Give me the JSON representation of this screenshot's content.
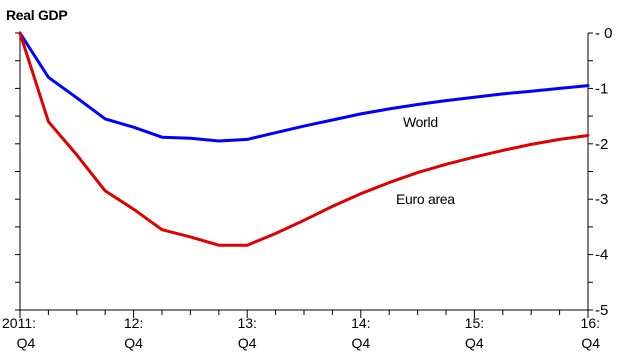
{
  "chart_data": {
    "type": "line",
    "title": "Real GDP",
    "xlabel": "",
    "ylabel": "",
    "x_ticks": [
      {
        "top": "2011:",
        "bottom": "Q4"
      },
      {
        "top": "12:",
        "bottom": "Q4"
      },
      {
        "top": "13:",
        "bottom": "Q4"
      },
      {
        "top": "14:",
        "bottom": "Q4"
      },
      {
        "top": "15:",
        "bottom": "Q4"
      },
      {
        "top": "16:",
        "bottom": "Q4"
      }
    ],
    "y_ticks": [
      "0",
      "-1",
      "-2",
      "-3",
      "-4",
      "-5"
    ],
    "ylim": [
      -5,
      0
    ],
    "xlim": [
      0,
      20
    ],
    "grid": false,
    "series": [
      {
        "name": "World",
        "color": "#0000ff",
        "x": [
          0,
          1,
          2,
          3,
          4,
          5,
          6,
          7,
          8,
          9,
          10,
          11,
          12,
          13,
          14,
          15,
          16,
          17,
          18,
          19,
          20
        ],
        "values": [
          0,
          -0.8,
          -1.17,
          -1.55,
          -1.7,
          -1.88,
          -1.9,
          -1.95,
          -1.92,
          -1.8,
          -1.68,
          -1.57,
          -1.46,
          -1.37,
          -1.29,
          -1.22,
          -1.16,
          -1.1,
          -1.05,
          -1.0,
          -0.95
        ]
      },
      {
        "name": "Euro area",
        "color": "#e00000",
        "x": [
          0,
          1,
          2,
          3,
          4,
          5,
          6,
          7,
          8,
          9,
          10,
          11,
          12,
          13,
          14,
          15,
          16,
          17,
          18,
          19,
          20
        ],
        "values": [
          0,
          -1.6,
          -2.2,
          -2.85,
          -3.18,
          -3.55,
          -3.68,
          -3.83,
          -3.83,
          -3.62,
          -3.38,
          -3.13,
          -2.9,
          -2.7,
          -2.52,
          -2.37,
          -2.24,
          -2.12,
          -2.01,
          -1.92,
          -1.85
        ]
      }
    ],
    "annotations": [
      {
        "text": "World",
        "series": "World"
      },
      {
        "text": "Euro area",
        "series": "Euro area"
      }
    ]
  }
}
